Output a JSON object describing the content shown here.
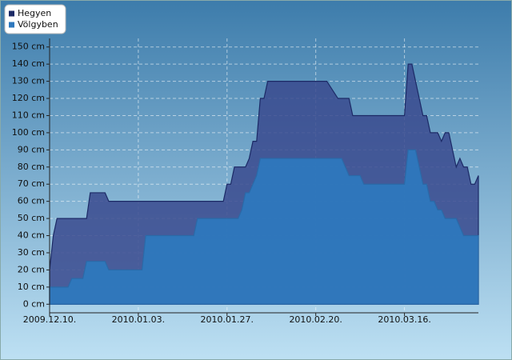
{
  "chart_data": {
    "type": "area",
    "series": [
      {
        "name": "Hegyen",
        "color": "#3a4a8e",
        "edge": "#1c2a66",
        "x": [
          "2009-12-10",
          "2009-12-11",
          "2009-12-12",
          "2009-12-20",
          "2009-12-21",
          "2009-12-25",
          "2009-12-26",
          "2010-01-26",
          "2010-01-27",
          "2010-01-28",
          "2010-01-29",
          "2010-02-01",
          "2010-02-02",
          "2010-02-03",
          "2010-02-04",
          "2010-02-05",
          "2010-02-06",
          "2010-02-07",
          "2010-02-23",
          "2010-02-26",
          "2010-03-01",
          "2010-03-02",
          "2010-03-16",
          "2010-03-17",
          "2010-03-18",
          "2010-03-20",
          "2010-03-21",
          "2010-03-22",
          "2010-03-23",
          "2010-03-25",
          "2010-03-26",
          "2010-03-27",
          "2010-03-28",
          "2010-03-29",
          "2010-03-30",
          "2010-03-31",
          "2010-04-01",
          "2010-04-02",
          "2010-04-03",
          "2010-04-04",
          "2010-04-05"
        ],
        "values": [
          20,
          40,
          50,
          50,
          65,
          65,
          60,
          60,
          70,
          70,
          80,
          80,
          85,
          95,
          95,
          120,
          120,
          130,
          130,
          120,
          120,
          110,
          110,
          140,
          140,
          120,
          110,
          110,
          100,
          100,
          95,
          100,
          100,
          90,
          80,
          85,
          80,
          80,
          70,
          70,
          75
        ]
      },
      {
        "name": "Völgyben",
        "color": "#2e78bd",
        "edge": "#2a6aa8",
        "x": [
          "2009-12-10",
          "2009-12-15",
          "2009-12-16",
          "2009-12-19",
          "2009-12-20",
          "2009-12-25",
          "2009-12-26",
          "2010-01-04",
          "2010-01-05",
          "2010-01-18",
          "2010-01-19",
          "2010-01-30",
          "2010-01-31",
          "2010-02-01",
          "2010-02-02",
          "2010-02-04",
          "2010-02-05",
          "2010-02-27",
          "2010-03-01",
          "2010-03-04",
          "2010-03-05",
          "2010-03-16",
          "2010-03-17",
          "2010-03-19",
          "2010-03-21",
          "2010-03-22",
          "2010-03-23",
          "2010-03-24",
          "2010-03-25",
          "2010-03-26",
          "2010-03-27",
          "2010-03-30",
          "2010-04-01",
          "2010-04-05"
        ],
        "values": [
          10,
          10,
          15,
          15,
          25,
          25,
          20,
          20,
          40,
          40,
          50,
          50,
          55,
          65,
          65,
          75,
          85,
          85,
          75,
          75,
          70,
          70,
          90,
          90,
          70,
          70,
          60,
          60,
          55,
          55,
          50,
          50,
          40,
          40
        ]
      }
    ],
    "xlim": [
      "2009-12-10",
      "2010-04-05"
    ],
    "xticks": [
      {
        "value": "2009-12-10",
        "label": "2009.12.10."
      },
      {
        "value": "2010-01-03",
        "label": "2010.01.03."
      },
      {
        "value": "2010-01-27",
        "label": "2010.01.27."
      },
      {
        "value": "2010-02-20",
        "label": "2010.02.20."
      },
      {
        "value": "2010-03-16",
        "label": "2010.03.16."
      }
    ],
    "ylim": [
      -5,
      155
    ],
    "yticks": [
      {
        "value": 0,
        "label": "0 cm"
      },
      {
        "value": 10,
        "label": "10 cm"
      },
      {
        "value": 20,
        "label": "20 cm"
      },
      {
        "value": 30,
        "label": "30 cm"
      },
      {
        "value": 40,
        "label": "40 cm"
      },
      {
        "value": 50,
        "label": "50 cm"
      },
      {
        "value": 60,
        "label": "60 cm"
      },
      {
        "value": 70,
        "label": "70 cm"
      },
      {
        "value": 80,
        "label": "80 cm"
      },
      {
        "value": 90,
        "label": "90 cm"
      },
      {
        "value": 100,
        "label": "100 cm"
      },
      {
        "value": 110,
        "label": "110 cm"
      },
      {
        "value": 120,
        "label": "120 cm"
      },
      {
        "value": 130,
        "label": "130 cm"
      },
      {
        "value": 140,
        "label": "140 cm"
      },
      {
        "value": 150,
        "label": "150 cm"
      }
    ],
    "grid": true,
    "legend": "top-left"
  }
}
